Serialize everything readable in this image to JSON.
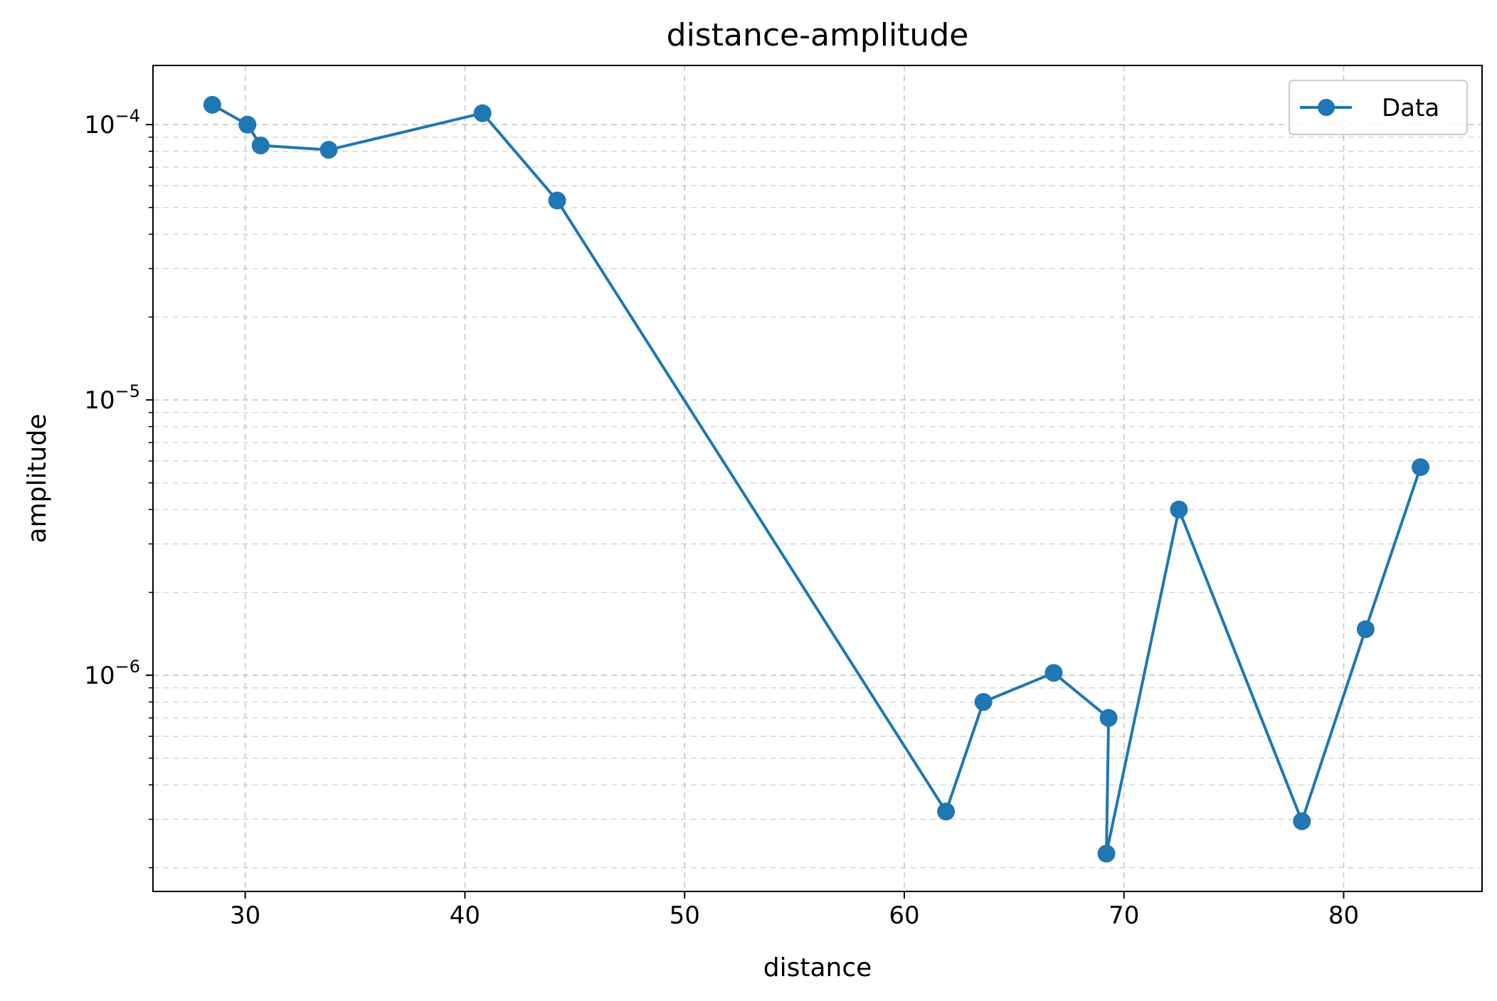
{
  "chart_data": {
    "type": "line",
    "title": "distance-amplitude",
    "xlabel": "distance",
    "ylabel": "amplitude",
    "xscale": "linear",
    "yscale": "log",
    "xlim": [
      25.8,
      86.3
    ],
    "ylim": [
      1.64e-07,
      0.000164
    ],
    "xticks": [
      30,
      40,
      50,
      60,
      70,
      80
    ],
    "yticks": [
      {
        "value": 1e-06,
        "base": "10",
        "exp": "−6"
      },
      {
        "value": 1e-05,
        "base": "10",
        "exp": "−5"
      },
      {
        "value": 0.0001,
        "base": "10",
        "exp": "−4"
      }
    ],
    "grid": true,
    "legend": {
      "location": "top-right"
    },
    "series": [
      {
        "name": "Data",
        "color": "#1f77b4",
        "marker": "circle",
        "x": [
          28.5,
          30.1,
          30.7,
          33.8,
          40.8,
          44.2,
          61.9,
          63.6,
          66.8,
          69.3,
          69.2,
          72.5,
          78.1,
          81.0,
          83.5
        ],
        "y": [
          0.000118,
          0.0001,
          8.4e-05,
          8.1e-05,
          0.00011,
          5.3e-05,
          3.2e-07,
          8e-07,
          1.02e-06,
          7e-07,
          2.25e-07,
          4e-06,
          2.95e-07,
          1.47e-06,
          5.7e-06
        ]
      }
    ]
  }
}
